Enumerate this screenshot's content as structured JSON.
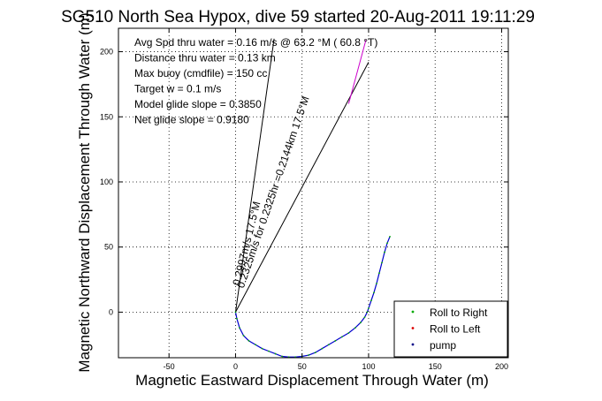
{
  "chart_data": {
    "type": "line",
    "title": "SG510 North Sea Hypox, dive 59 started 20-Aug-2011 19:11:29",
    "xlabel": "Magnetic Eastward Displacement Through Water (m)",
    "ylabel": "Magnetic Northward Displacement Through Water (m)",
    "xlim": [
      -88,
      205
    ],
    "ylim": [
      -35,
      218
    ],
    "xticks": [
      -50,
      0,
      50,
      100,
      150,
      200
    ],
    "yticks": [
      0,
      50,
      100,
      150,
      200
    ],
    "grid": true,
    "grid_style": "dotted",
    "legend_position": "bottom-right",
    "annotations": [
      "Avg Spd thru water =  0.16 m/s @  63.2   °M ( 60.8 °T)",
      "Distance thru water =  0.13 km",
      "Max buoy (cmdfile) = 150 cc",
      "Target w = 0.1 m/s",
      "Model glide slope = 0.3850",
      "Net glide slope = 0.9180"
    ],
    "vector_labels": [
      "0.2997m/s 17.5°M",
      "0.2325m/s for 0.2325hr =0.2144km 17.5°M"
    ],
    "series": [
      {
        "name": "pump",
        "color": "#0000cc",
        "x": [
          0,
          1,
          3,
          6,
          10,
          15,
          20,
          25,
          30,
          35,
          40,
          45,
          50,
          55,
          60,
          65,
          70,
          75,
          80,
          85,
          90,
          94,
          97,
          99,
          100,
          102,
          104,
          106,
          108,
          110,
          112,
          114,
          116
        ],
        "y": [
          0,
          -5,
          -12,
          -18,
          -22,
          -25,
          -28,
          -30,
          -32,
          -34,
          -34.5,
          -34.5,
          -34,
          -33,
          -31,
          -28,
          -25,
          -22,
          -19,
          -16,
          -12,
          -8,
          -4,
          0,
          3,
          9,
          15,
          22,
          30,
          38,
          46,
          53,
          58
        ]
      }
    ],
    "lines": [
      {
        "name": "model-glide-line",
        "color": "#000000",
        "x": [
          0,
          29
        ],
        "y": [
          0,
          210
        ]
      },
      {
        "name": "net-glide-line",
        "color": "#000000",
        "x": [
          0,
          100
        ],
        "y": [
          0,
          192
        ]
      },
      {
        "name": "ellipse-vector-line",
        "color": "#cc00cc",
        "x": [
          85,
          98
        ],
        "y": [
          160,
          209
        ]
      }
    ],
    "legend": [
      {
        "name": "Roll to Right",
        "color": "#00aa00"
      },
      {
        "name": "Roll to Left",
        "color": "#dd0000"
      },
      {
        "name": "pump",
        "color": "#000088"
      }
    ]
  }
}
